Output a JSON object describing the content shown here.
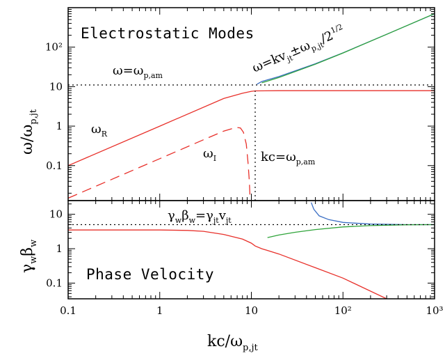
{
  "chart_data": [
    {
      "type": "line",
      "title": "Electrostatic Modes",
      "ylabel": "ω/ω_p,jt",
      "xscale": "log",
      "yscale": "log",
      "xlim": [
        0.1,
        1000
      ],
      "ylim": [
        0.013,
        1000
      ],
      "xticks": [
        "0.1",
        "1",
        "10",
        "10²",
        "10³"
      ],
      "yticks": [
        "0.1",
        "1",
        "10",
        "10²"
      ],
      "series": [
        {
          "name": "ω_R",
          "color": "#e8302a",
          "dash": "solid",
          "x": [
            0.1,
            1,
            5,
            8,
            10,
            11,
            20,
            100,
            1000
          ],
          "y": [
            0.1,
            1,
            5,
            6.8,
            7.6,
            7.8,
            7.9,
            7.9,
            7.9
          ]
        },
        {
          "name": "ω_I",
          "color": "#e8302a",
          "dash": "dashed",
          "x": [
            0.1,
            1,
            3,
            5,
            6,
            7,
            7.6,
            8.2,
            8.8,
            9.2,
            9.5,
            9.7
          ],
          "y": [
            0.015,
            0.15,
            0.45,
            0.75,
            0.85,
            0.92,
            0.9,
            0.7,
            0.35,
            0.12,
            0.04,
            0.013
          ]
        },
        {
          "name": "",
          "color": "#3b6fc4",
          "dash": "solid",
          "x": [
            11.5,
            13,
            20,
            50,
            100,
            300,
            1000
          ],
          "y": [
            11.5,
            13.5,
            18,
            38,
            72,
            212,
            700
          ]
        },
        {
          "name": "",
          "color": "#2fa43a",
          "dash": "solid",
          "x": [
            13,
            20,
            50,
            100,
            300,
            1000
          ],
          "y": [
            12.5,
            17,
            37,
            71,
            211,
            705
          ]
        },
        {
          "name": "",
          "color": "#000000",
          "dash": "dotted",
          "x": [
            0.1,
            1000
          ],
          "y": [
            11,
            11
          ]
        },
        {
          "name": "",
          "color": "#000000",
          "dash": "dotted",
          "x": [
            11,
            11
          ],
          "y": [
            0.013,
            7.8
          ]
        }
      ],
      "annotations": [
        {
          "text": "Electrostatic Modes",
          "at": "top-left"
        },
        {
          "main": "ω=ω",
          "sub": "p,am",
          "at": "dotted line"
        },
        {
          "main": "ω",
          "sub": "R",
          "at": "red solid curve"
        },
        {
          "main": "ω",
          "sub": "I",
          "at": "red dashed curve"
        },
        {
          "main": "kc=ω",
          "sub": "p,am",
          "at": "vertical dotted line"
        },
        {
          "main": "ω=kv",
          "sub1": "jt",
          "mid": "±ω",
          "sub2": "p,jt",
          "tail": "/2",
          "sup": "1/2",
          "at": "along diagonal"
        }
      ]
    },
    {
      "type": "line",
      "title": "Phase Velocity",
      "xlabel": "kc/ω_p,jt",
      "ylabel": "γ_wβ_w",
      "xscale": "log",
      "yscale": "log",
      "xlim": [
        0.1,
        1000
      ],
      "ylim": [
        0.035,
        25
      ],
      "xticks": [
        "0.1",
        "1",
        "10",
        "10²",
        "10³"
      ],
      "yticks": [
        "0.1",
        "1",
        "10"
      ],
      "series": [
        {
          "name": "",
          "color": "#e8302a",
          "dash": "solid",
          "x": [
            0.1,
            1,
            2,
            3,
            5,
            8,
            10,
            11,
            13,
            20,
            50,
            100,
            300
          ],
          "y": [
            3.5,
            3.5,
            3.4,
            3.2,
            2.6,
            1.9,
            1.45,
            1.2,
            1.0,
            0.7,
            0.28,
            0.14,
            0.035
          ]
        },
        {
          "name": "",
          "color": "#3b6fc4",
          "dash": "solid",
          "x": [
            45,
            48,
            55,
            70,
            100,
            200,
            500,
            1000
          ],
          "y": [
            22,
            14,
            9,
            7,
            5.8,
            5.2,
            5.0,
            5.0
          ]
        },
        {
          "name": "",
          "color": "#2fa43a",
          "dash": "solid",
          "x": [
            15,
            20,
            30,
            50,
            100,
            200,
            500,
            1000
          ],
          "y": [
            2.1,
            2.5,
            3.0,
            3.6,
            4.3,
            4.7,
            4.95,
            5.0
          ]
        },
        {
          "name": "",
          "color": "#000000",
          "dash": "dotted",
          "x": [
            0.1,
            1000
          ],
          "y": [
            5,
            5
          ]
        }
      ],
      "annotations": [
        {
          "text": "Phase Velocity",
          "at": "bottom-left"
        },
        {
          "main": "γ",
          "sub1": "w",
          "mid": "β",
          "sub2": "w",
          "eq": "=γ",
          "sub3": "jt",
          "v": "v",
          "sub4": "jt",
          "at": "above dotted line"
        }
      ]
    }
  ],
  "labels": {
    "top_title": "Electrostatic Modes",
    "bottom_title": "Phase Velocity",
    "omega_pam_main": "ω=ω",
    "omega_pam_sub": "p,am",
    "omega_r_main": "ω",
    "omega_r_sub": "R",
    "omega_i_main": "ω",
    "omega_i_sub": "I",
    "kc_main": "kc=ω",
    "kc_sub": "p,am",
    "diag_a": "ω=kv",
    "diag_b": "jt",
    "diag_c": "±ω",
    "diag_d": "p,jt",
    "diag_e": "/2",
    "diag_f": "1/2",
    "gb_a": "γ",
    "gb_b": "w",
    "gb_c": "β",
    "gb_d": "w",
    "gb_e": "=γ",
    "gb_f": "jt",
    "gb_g": "v",
    "gb_h": "jt",
    "xlabel_main": "kc/ω",
    "xlabel_sub": "p,jt",
    "ylabel_top_main": "ω/ω",
    "ylabel_top_sub": "p,jt",
    "ylabel_bot_a": "γ",
    "ylabel_bot_b": "w",
    "ylabel_bot_c": "β",
    "ylabel_bot_d": "w"
  }
}
